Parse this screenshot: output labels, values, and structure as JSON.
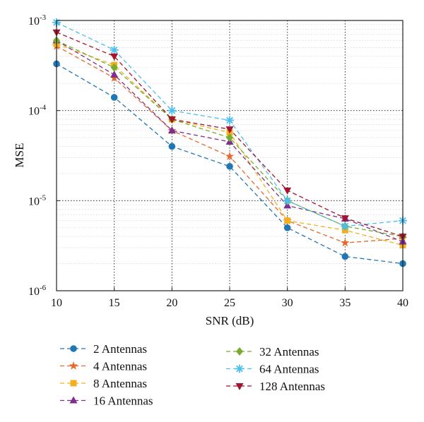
{
  "chart_data": {
    "type": "line",
    "xlabel": "SNR (dB)",
    "ylabel": "MSE",
    "y_scale": "log",
    "xlim": [
      10,
      40
    ],
    "ylim": [
      1e-06,
      0.001
    ],
    "x_ticks": [
      "10",
      "15",
      "20",
      "25",
      "30",
      "35",
      "40"
    ],
    "y_ticks": [
      {
        "base": "10",
        "exp": "-6"
      },
      {
        "base": "10",
        "exp": "-5"
      },
      {
        "base": "10",
        "exp": "-4"
      },
      {
        "base": "10",
        "exp": "-3"
      }
    ],
    "grid": true,
    "legend_placement": "below plot",
    "x": [
      10,
      15,
      20,
      25,
      30,
      35,
      40
    ],
    "series": [
      {
        "name": "2 Antennas",
        "color": "#1f77b4",
        "marker": "circle",
        "values": [
          0.00033,
          0.00014,
          4e-05,
          2.4e-05,
          5e-06,
          2.4e-06,
          2e-06
        ]
      },
      {
        "name": "4 Antennas",
        "color": "#e8672a",
        "marker": "star",
        "values": [
          0.00052,
          0.00023,
          6e-05,
          3.1e-05,
          6e-06,
          3.4e-06,
          3.8e-06
        ]
      },
      {
        "name": "8 Antennas",
        "color": "#f2b01e",
        "marker": "square",
        "values": [
          0.00055,
          0.00032,
          8e-05,
          5.7e-05,
          6e-06,
          4.7e-06,
          3.2e-06
        ]
      },
      {
        "name": "16 Antennas",
        "color": "#7e2f8e",
        "marker": "triangle-up",
        "values": [
          0.0006,
          0.00025,
          6e-05,
          4.5e-05,
          8.8e-06,
          6.3e-06,
          3.5e-06
        ]
      },
      {
        "name": "32 Antennas",
        "color": "#77ac30",
        "marker": "diamond",
        "values": [
          0.0006,
          0.0003,
          8e-05,
          5e-05,
          1e-05,
          5.2e-06,
          4e-06
        ]
      },
      {
        "name": "64 Antennas",
        "color": "#4dbeee",
        "marker": "asterisk",
        "values": [
          0.00095,
          0.00047,
          0.0001,
          7.8e-05,
          1e-05,
          5.2e-06,
          6e-06
        ]
      },
      {
        "name": "128 Antennas",
        "color": "#a2142f",
        "marker": "triangle-down",
        "values": [
          0.00074,
          0.0004,
          8e-05,
          6.2e-05,
          1.3e-05,
          6.4e-06,
          4e-06
        ]
      }
    ]
  }
}
